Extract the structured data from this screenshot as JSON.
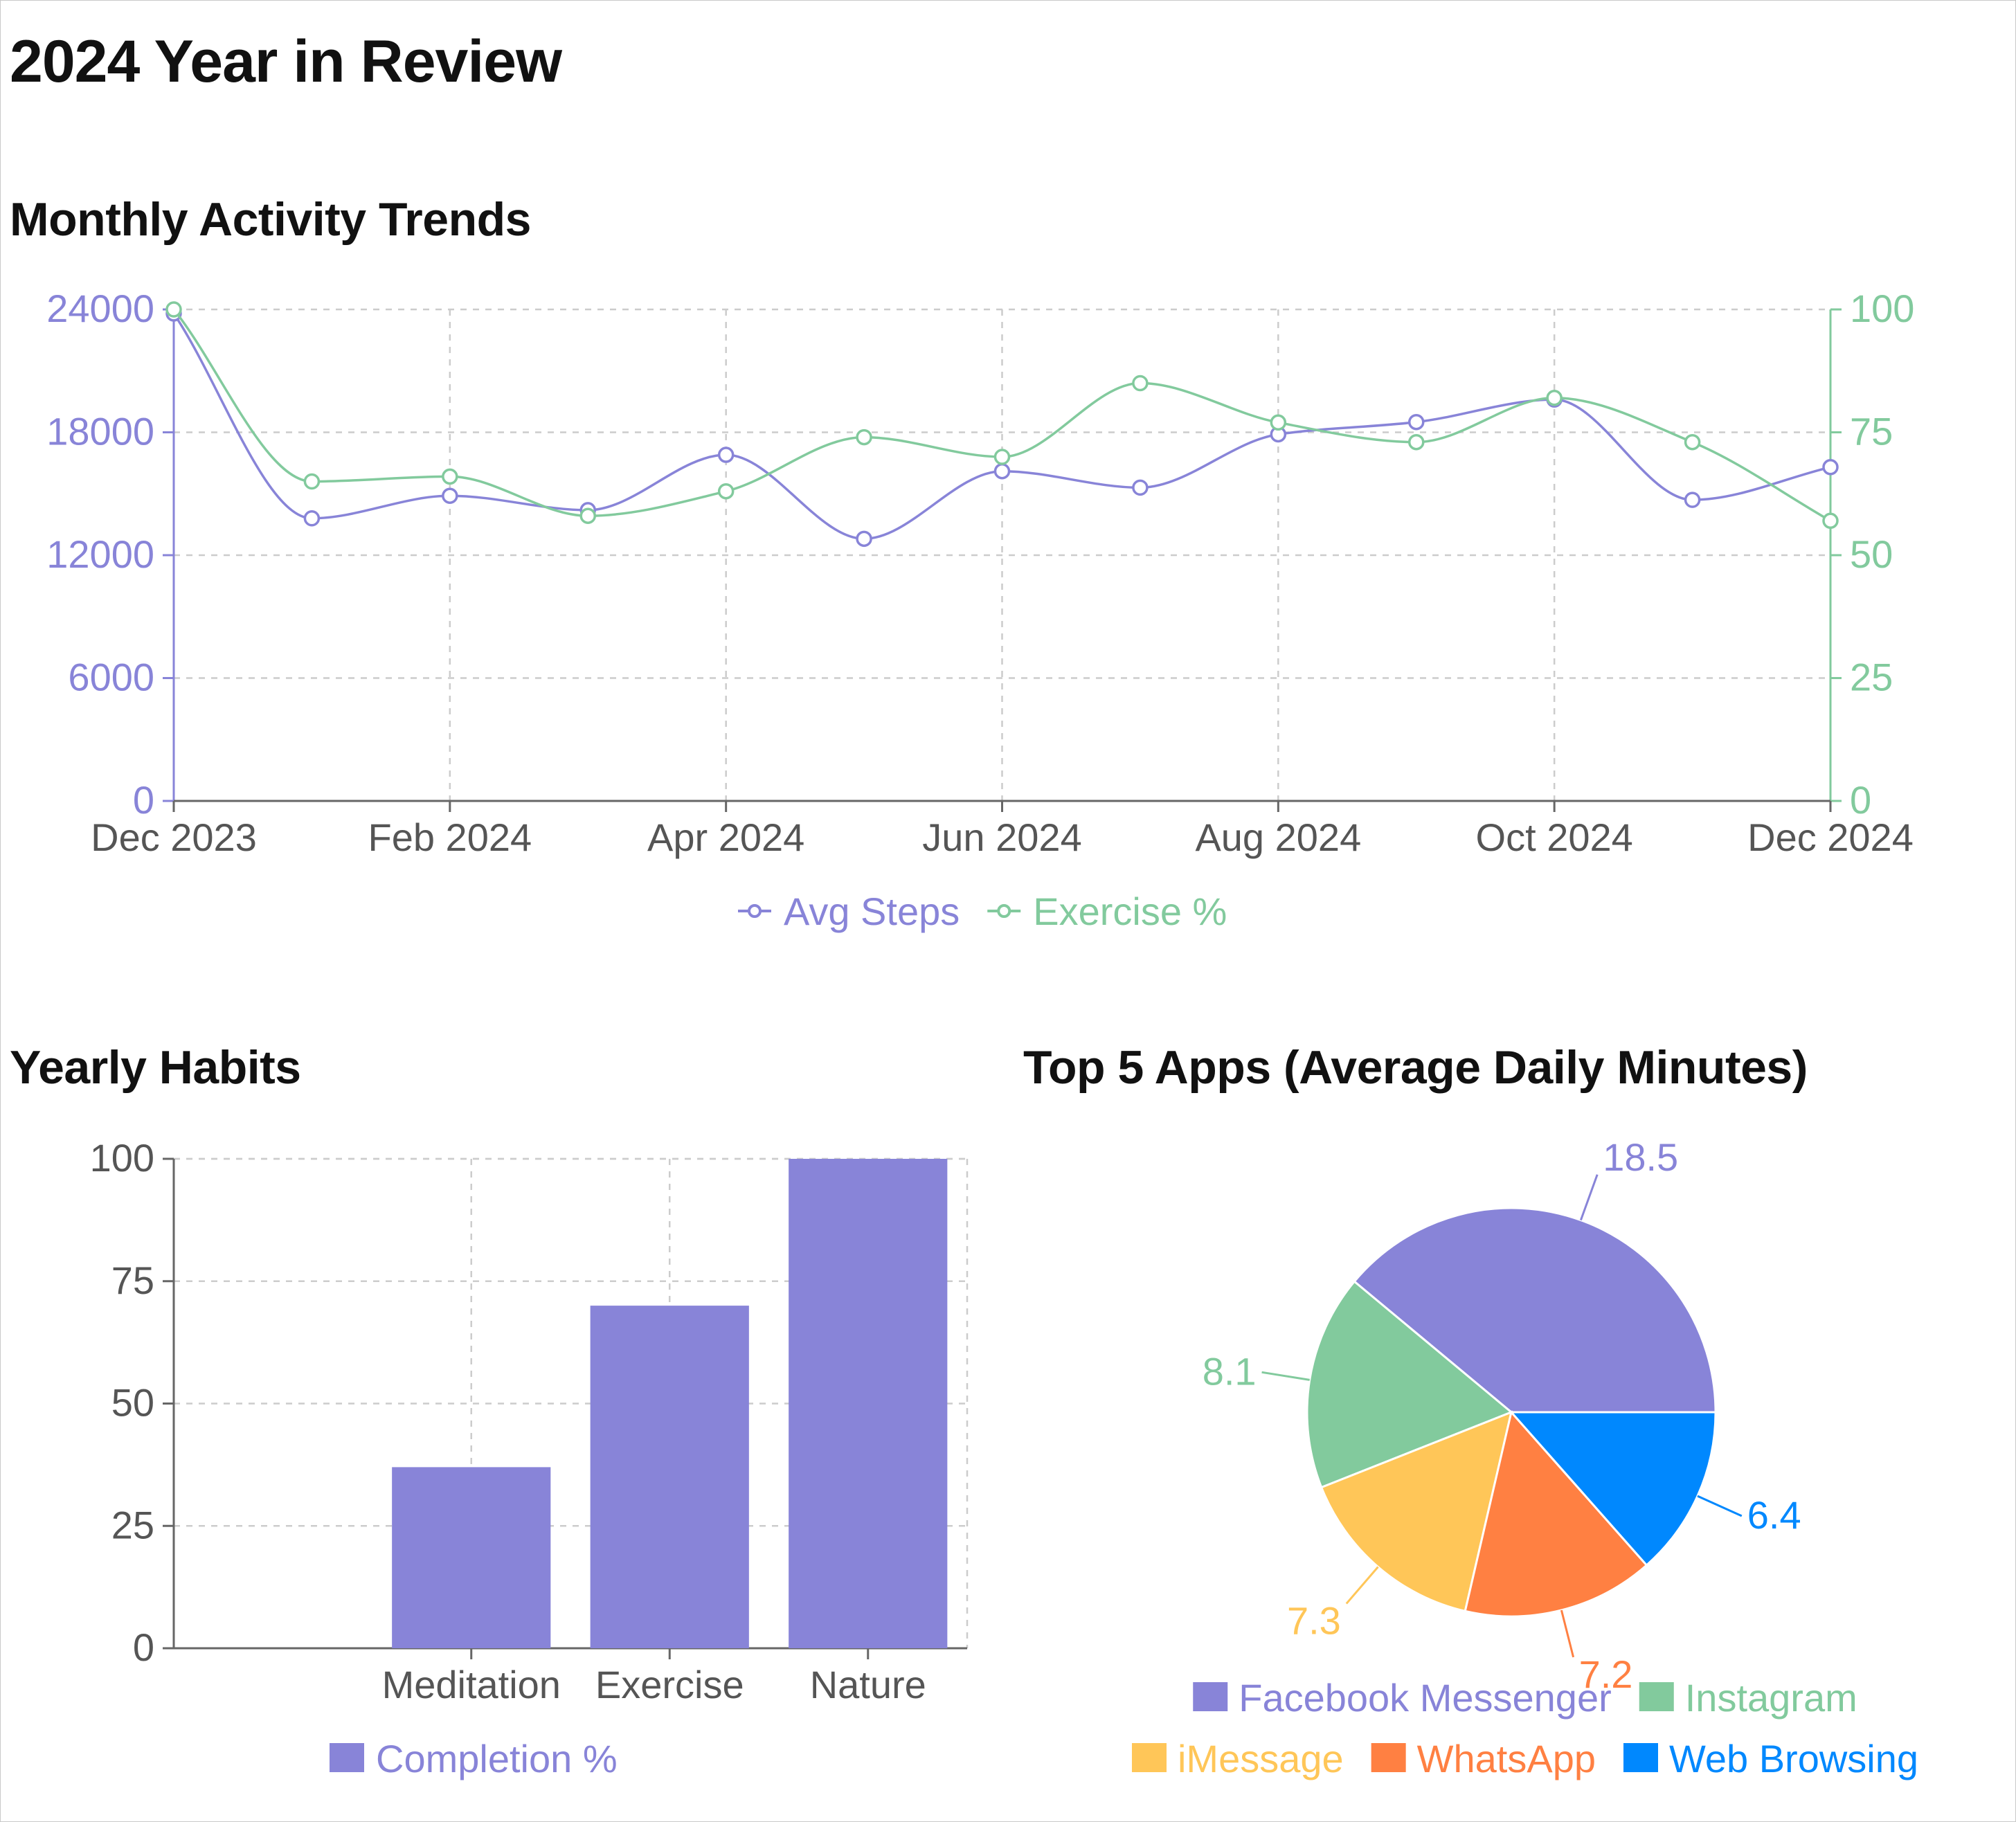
{
  "page": {
    "title": "2024 Year in Review"
  },
  "sections": {
    "trend_title": "Monthly Activity Trends",
    "habits_title": "Yearly Habits",
    "apps_title": "Top 5 Apps (Average Daily Minutes)"
  },
  "colors": {
    "purple": "#8884d8",
    "green": "#82ca9d",
    "yellow": "#ffc658",
    "orange": "#ff8042",
    "blue": "#0088fe",
    "axis_text": "#555555",
    "grid": "#cccccc"
  },
  "chart_data": [
    {
      "type": "line",
      "title": "Monthly Activity Trends",
      "x": [
        "Dec 2023",
        "Jan 2024",
        "Feb 2024",
        "Mar 2024",
        "Apr 2024",
        "May 2024",
        "Jun 2024",
        "Jul 2024",
        "Aug 2024",
        "Sep 2024",
        "Oct 2024",
        "Nov 2024",
        "Dec 2024"
      ],
      "x_tick_labels": [
        "Dec 2023",
        "Feb 2024",
        "Apr 2024",
        "Jun 2024",
        "Aug 2024",
        "Oct 2024",
        "Dec 2024"
      ],
      "y_left": {
        "ticks": [
          "0",
          "6000",
          "12000",
          "18000",
          "24000"
        ],
        "range": [
          0,
          24000
        ]
      },
      "y_right": {
        "ticks": [
          "0",
          "25",
          "50",
          "75",
          "100"
        ],
        "range": [
          0,
          100
        ]
      },
      "series": [
        {
          "name": "Avg Steps",
          "axis": "left",
          "color": "#8884d8",
          "values": [
            23800,
            13800,
            14900,
            14200,
            16900,
            12800,
            16100,
            15300,
            17900,
            18500,
            19600,
            14700,
            16300
          ]
        },
        {
          "name": "Exercise %",
          "axis": "right",
          "color": "#82ca9d",
          "values": [
            100,
            65,
            66,
            58,
            63,
            74,
            70,
            85,
            77,
            73,
            82,
            73,
            57
          ]
        }
      ],
      "grid": true,
      "legend": "bottom-center"
    },
    {
      "type": "bar",
      "title": "Yearly Habits",
      "categories": [
        "Meditation",
        "Exercise",
        "Nature"
      ],
      "y_ticks": [
        "0",
        "25",
        "50",
        "75",
        "100"
      ],
      "ylim": [
        0,
        100
      ],
      "series": [
        {
          "name": "Completion %",
          "color": "#8884d8",
          "values": [
            37,
            70,
            100
          ]
        }
      ],
      "grid": true,
      "legend": "bottom-center"
    },
    {
      "type": "pie",
      "title": "Top 5 Apps (Average Daily Minutes)",
      "slices": [
        {
          "label": "Facebook Messenger",
          "value": 18.5,
          "value_label": "18.5",
          "color": "#8884d8"
        },
        {
          "label": "Instagram",
          "value": 8.1,
          "value_label": "8.1",
          "color": "#82ca9d"
        },
        {
          "label": "iMessage",
          "value": 7.3,
          "value_label": "7.3",
          "color": "#ffc658"
        },
        {
          "label": "WhatsApp",
          "value": 7.2,
          "value_label": "7.2",
          "color": "#ff8042"
        },
        {
          "label": "Web Browsing",
          "value": 6.4,
          "value_label": "6.4",
          "color": "#0088fe"
        }
      ],
      "legend": "bottom-center"
    }
  ]
}
